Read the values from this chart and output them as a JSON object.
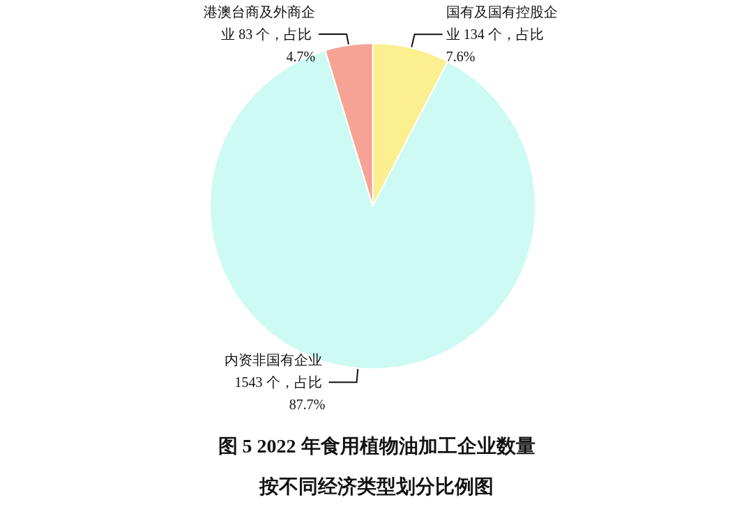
{
  "chart_data": {
    "type": "pie",
    "title": "图 5 2022 年食用植物油加工企业数量",
    "subtitle": "按不同经济类型划分比例图",
    "categories": [
      "国有及国有控股企业",
      "内资非国有企业",
      "港澳台商及外商企业"
    ],
    "values": [
      134,
      1543,
      83
    ],
    "value_labels": [
      "134 个，占比 7.6%",
      "1543 个，占比 87.7%",
      "83 个，占比 4.7%"
    ],
    "colors": [
      "#fbef8f",
      "#cdfaf3",
      "#f6a395"
    ]
  }
}
